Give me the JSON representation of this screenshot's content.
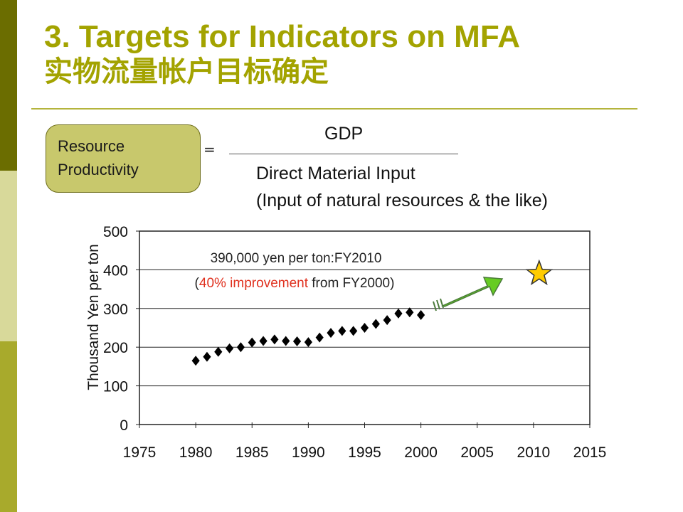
{
  "slide": {
    "title_line1": "3. Targets for Indicators on MFA",
    "title_line2": "实物流量帐户目标确定"
  },
  "formula": {
    "lhs_line1": "Resource",
    "lhs_line2": "Productivity",
    "equals": "=",
    "numerator": "GDP",
    "denominator_line1": "Direct Material Input",
    "denominator_line2": "(Input of natural resources & the like)"
  },
  "colors": {
    "title": "#a3a300",
    "accent_red": "#e0301e",
    "arrow_green": "#66cc22",
    "star_fill": "#ffcc00"
  },
  "chart_data": {
    "type": "scatter",
    "ylabel": "Thousand Yen per ton",
    "xlabel": "",
    "xlim": [
      1975,
      2015
    ],
    "ylim": [
      0,
      500
    ],
    "x_ticks": [
      "1975",
      "1980",
      "1985",
      "1990",
      "1995",
      "2000",
      "2005",
      "2010",
      "2015"
    ],
    "y_ticks": [
      "0",
      "100",
      "200",
      "300",
      "400",
      "500"
    ],
    "grid": "horizontal",
    "series": [
      {
        "marker": "diamond",
        "x": [
          1980,
          1981,
          1982,
          1983,
          1984,
          1985,
          1986,
          1987,
          1988,
          1989,
          1990,
          1991,
          1992,
          1993,
          1994,
          1995,
          1996,
          1997,
          1998,
          1999,
          2000
        ],
        "values": [
          165,
          175,
          188,
          197,
          200,
          212,
          216,
          220,
          216,
          215,
          213,
          225,
          237,
          242,
          242,
          250,
          260,
          270,
          287,
          290,
          283
        ]
      }
    ],
    "target": {
      "x": 2010.5,
      "value": 390,
      "marker": "star"
    },
    "annotation_line1": "390,000 yen per ton:FY2010",
    "annotation_open": "(",
    "annotation_highlight": "40% improvement",
    "annotation_rest": " from FY2000)"
  }
}
